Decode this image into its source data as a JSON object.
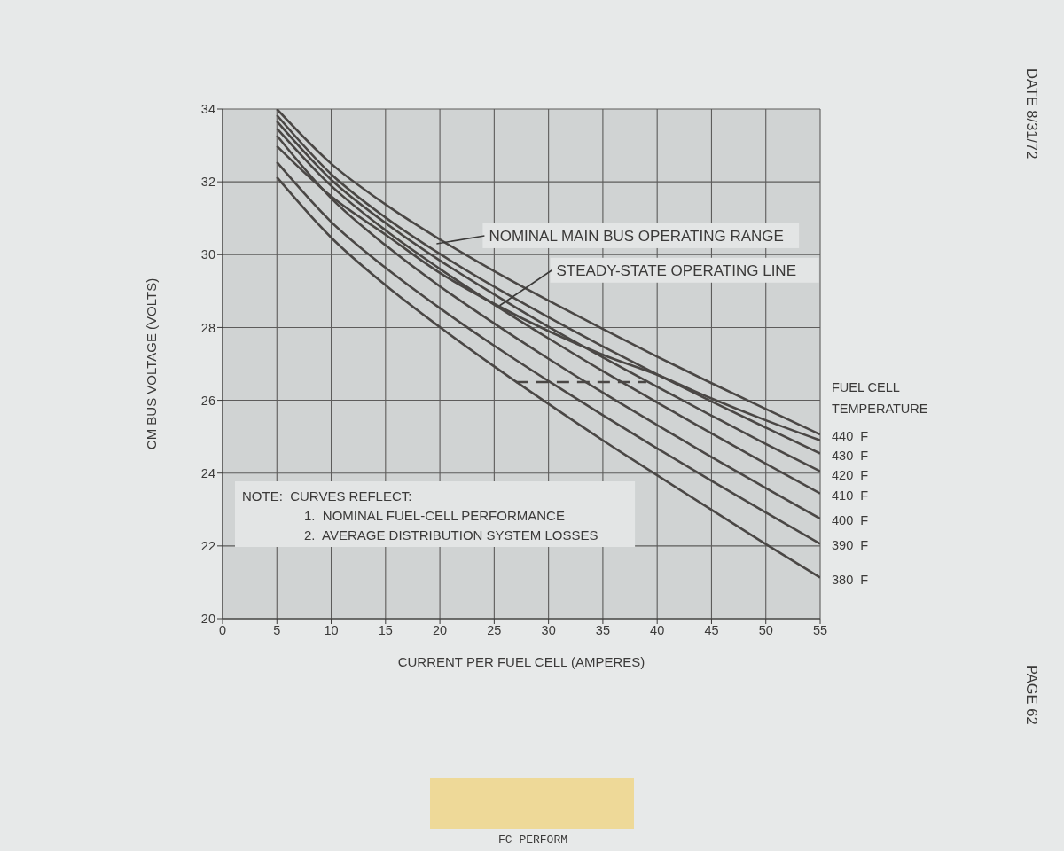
{
  "chart_data": {
    "type": "line",
    "xlabel": "CURRENT PER FUEL CELL (AMPERES)",
    "ylabel": "CM BUS VOLTAGE (VOLTS)",
    "legend_title": "FUEL CELL TEMPERATURE",
    "x": [
      5,
      10,
      15,
      20,
      25,
      30,
      35,
      40,
      45,
      50,
      55
    ],
    "series": [
      {
        "name": "440 F",
        "color": "#4a4745",
        "values": [
          34.0,
          32.5,
          31.38,
          30.42,
          29.55,
          28.74,
          27.96,
          27.2,
          26.47,
          25.76,
          25.06
        ]
      },
      {
        "name": "430 F",
        "color": "#4a4745",
        "values": [
          33.83,
          32.21,
          31.02,
          30.02,
          29.12,
          28.28,
          27.48,
          26.71,
          25.97,
          25.25,
          24.54
        ]
      },
      {
        "name": "420 F",
        "color": "#4a4745",
        "values": [
          33.66,
          32.06,
          30.87,
          29.84,
          28.91,
          28.02,
          27.18,
          26.37,
          25.58,
          24.8,
          24.05
        ]
      },
      {
        "name": "410 F",
        "color": "#4a4745",
        "values": [
          33.47,
          31.89,
          30.67,
          29.61,
          28.63,
          27.7,
          26.8,
          25.94,
          25.09,
          24.26,
          23.44
        ]
      },
      {
        "name": "400 F",
        "color": "#4a4745",
        "values": [
          33.27,
          31.55,
          30.26,
          29.13,
          28.11,
          27.14,
          26.21,
          25.32,
          24.44,
          23.59,
          22.75
        ]
      },
      {
        "name": "390 F",
        "color": "#4a4745",
        "values": [
          32.54,
          30.9,
          29.64,
          28.53,
          27.5,
          26.53,
          25.59,
          24.68,
          23.79,
          22.92,
          22.06
        ]
      },
      {
        "name": "380 F",
        "color": "#4a4745",
        "values": [
          32.13,
          30.47,
          29.16,
          28.01,
          26.93,
          25.9,
          24.9,
          23.94,
          22.99,
          22.05,
          21.13
        ]
      },
      {
        "color": "#4a4745",
        "values": [
          32.98,
          31.6,
          30.55,
          29.5,
          28.65,
          27.9,
          27.25,
          26.7,
          26.05,
          25.45,
          24.9
        ]
      },
      {
        "color": "#4a4745",
        "x": [
          27,
          39
        ],
        "values": [
          26.5,
          26.5
        ],
        "line_style": "dashed"
      }
    ],
    "xlim": [
      0,
      55
    ],
    "ylim": [
      20,
      34
    ],
    "xticks": [
      0,
      5,
      10,
      15,
      20,
      25,
      30,
      35,
      40,
      45,
      50,
      55
    ],
    "yticks": [
      20,
      22,
      24,
      26,
      28,
      30,
      32,
      34
    ],
    "grid": true,
    "legend": "right",
    "marker": "none",
    "annotations": [
      {
        "text": "NOMINAL MAIN BUS OPERATING RANGE",
        "x": 19.7,
        "y": 30.3
      },
      {
        "text": "STEADY-STATE OPERATING LINE",
        "x": 25.5,
        "y": 28.6
      },
      "NOTE:  CURVES REFLECT:\n1.  NOMINAL FUEL-CELL PERFORMANCE\n2.  AVERAGE DISTRIBUTION SYSTEM LOSSES",
      "DATE 8/31/72",
      "PAGE 62",
      "FC PERFORM"
    ]
  }
}
